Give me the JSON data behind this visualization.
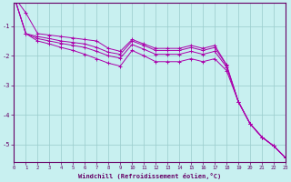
{
  "title": "",
  "xlabel": "Windchill (Refroidissement éolien,°C)",
  "ylabel": "",
  "bg_color": "#c8f0f0",
  "line_color": "#aa00aa",
  "grid_color": "#99cccc",
  "axis_color": "#660066",
  "tick_color": "#660066",
  "xlim": [
    0,
    23
  ],
  "ylim": [
    -5.6,
    -0.2
  ],
  "yticks": [
    -5,
    -4,
    -3,
    -2,
    -1
  ],
  "xticks": [
    0,
    1,
    2,
    3,
    4,
    5,
    6,
    7,
    8,
    9,
    10,
    11,
    12,
    13,
    14,
    15,
    16,
    17,
    18,
    19,
    20,
    21,
    22,
    23
  ],
  "series": [
    [
      0.0,
      -0.55,
      -1.25,
      -1.3,
      -1.35,
      -1.4,
      -1.45,
      -1.5,
      -1.75,
      -1.85,
      -1.45,
      -1.6,
      -1.75,
      -1.75,
      -1.75,
      -1.65,
      -1.75,
      -1.65,
      -2.3,
      -3.55,
      -4.3,
      -4.75,
      -5.05,
      -5.45
    ],
    [
      0.0,
      -1.25,
      -1.35,
      -1.42,
      -1.5,
      -1.55,
      -1.6,
      -1.72,
      -1.88,
      -1.95,
      -1.5,
      -1.65,
      -1.82,
      -1.82,
      -1.82,
      -1.72,
      -1.82,
      -1.72,
      -2.32,
      -3.55,
      -4.3,
      -4.75,
      -5.05,
      -5.45
    ],
    [
      0.0,
      -1.25,
      -1.42,
      -1.5,
      -1.58,
      -1.65,
      -1.72,
      -1.85,
      -2.0,
      -2.08,
      -1.62,
      -1.78,
      -1.95,
      -1.95,
      -1.95,
      -1.85,
      -1.95,
      -1.85,
      -2.38,
      -3.55,
      -4.3,
      -4.75,
      -5.05,
      -5.45
    ],
    [
      0.0,
      -1.25,
      -1.5,
      -1.6,
      -1.72,
      -1.82,
      -1.95,
      -2.1,
      -2.25,
      -2.35,
      -1.82,
      -2.0,
      -2.2,
      -2.2,
      -2.2,
      -2.1,
      -2.2,
      -2.1,
      -2.5,
      -3.55,
      -4.3,
      -4.75,
      -5.05,
      -5.45
    ]
  ]
}
